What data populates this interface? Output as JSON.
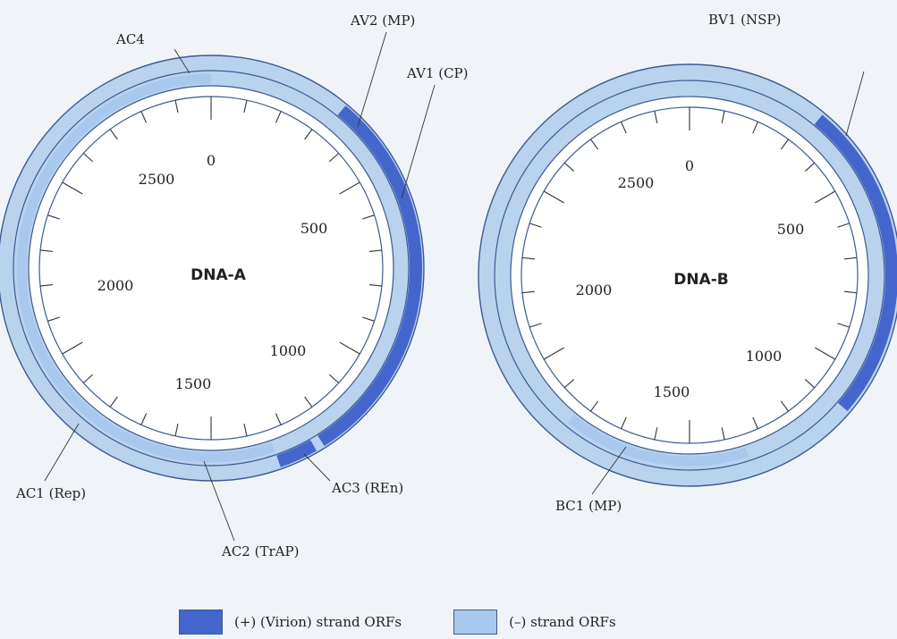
{
  "colors": {
    "plus_strand": "#4466cc",
    "minus_strand": "#a9c8ee",
    "ring": "#c8ddf2",
    "outline": "#3d5a8e"
  },
  "genome_length": 3000,
  "genomes": [
    {
      "title": "DNA-A",
      "scale_labels": [
        "0",
        "500",
        "1000",
        "1500",
        "2000",
        "2500"
      ],
      "orfs": [
        {
          "name": "AC4",
          "strand": "minus",
          "start": 2800,
          "end": 3000
        },
        {
          "name": "AV2 (MP)",
          "strand": "plus",
          "start": 330,
          "end": 480
        },
        {
          "name": "AV1 (CP)",
          "strand": "plus",
          "start": 470,
          "end": 1230
        },
        {
          "name": "AC3 (REn)",
          "strand": "plus",
          "start": 1250,
          "end": 1340
        },
        {
          "name": "AC2 (TrAP)",
          "strand": "minus",
          "start": 1340,
          "end": 1550
        },
        {
          "name": "AC1 (Rep)",
          "strand": "minus",
          "start": 1550,
          "end": 3000
        }
      ]
    },
    {
      "title": "DNA-B",
      "scale_labels": [
        "0",
        "500",
        "1000",
        "1500",
        "2000",
        "2500"
      ],
      "orfs": [
        {
          "name": "BV1 (NSP)",
          "strand": "plus",
          "start": 330,
          "end": 1090
        },
        {
          "name": "BC1 (MP)",
          "strand": "minus",
          "start": 1350,
          "end": 1830
        }
      ]
    }
  ],
  "legend": [
    {
      "label": "(+) (Virion) strand ORFs",
      "color": "#4466cc"
    },
    {
      "label": "(–) strand ORFs",
      "color": "#a9c8ee"
    }
  ]
}
